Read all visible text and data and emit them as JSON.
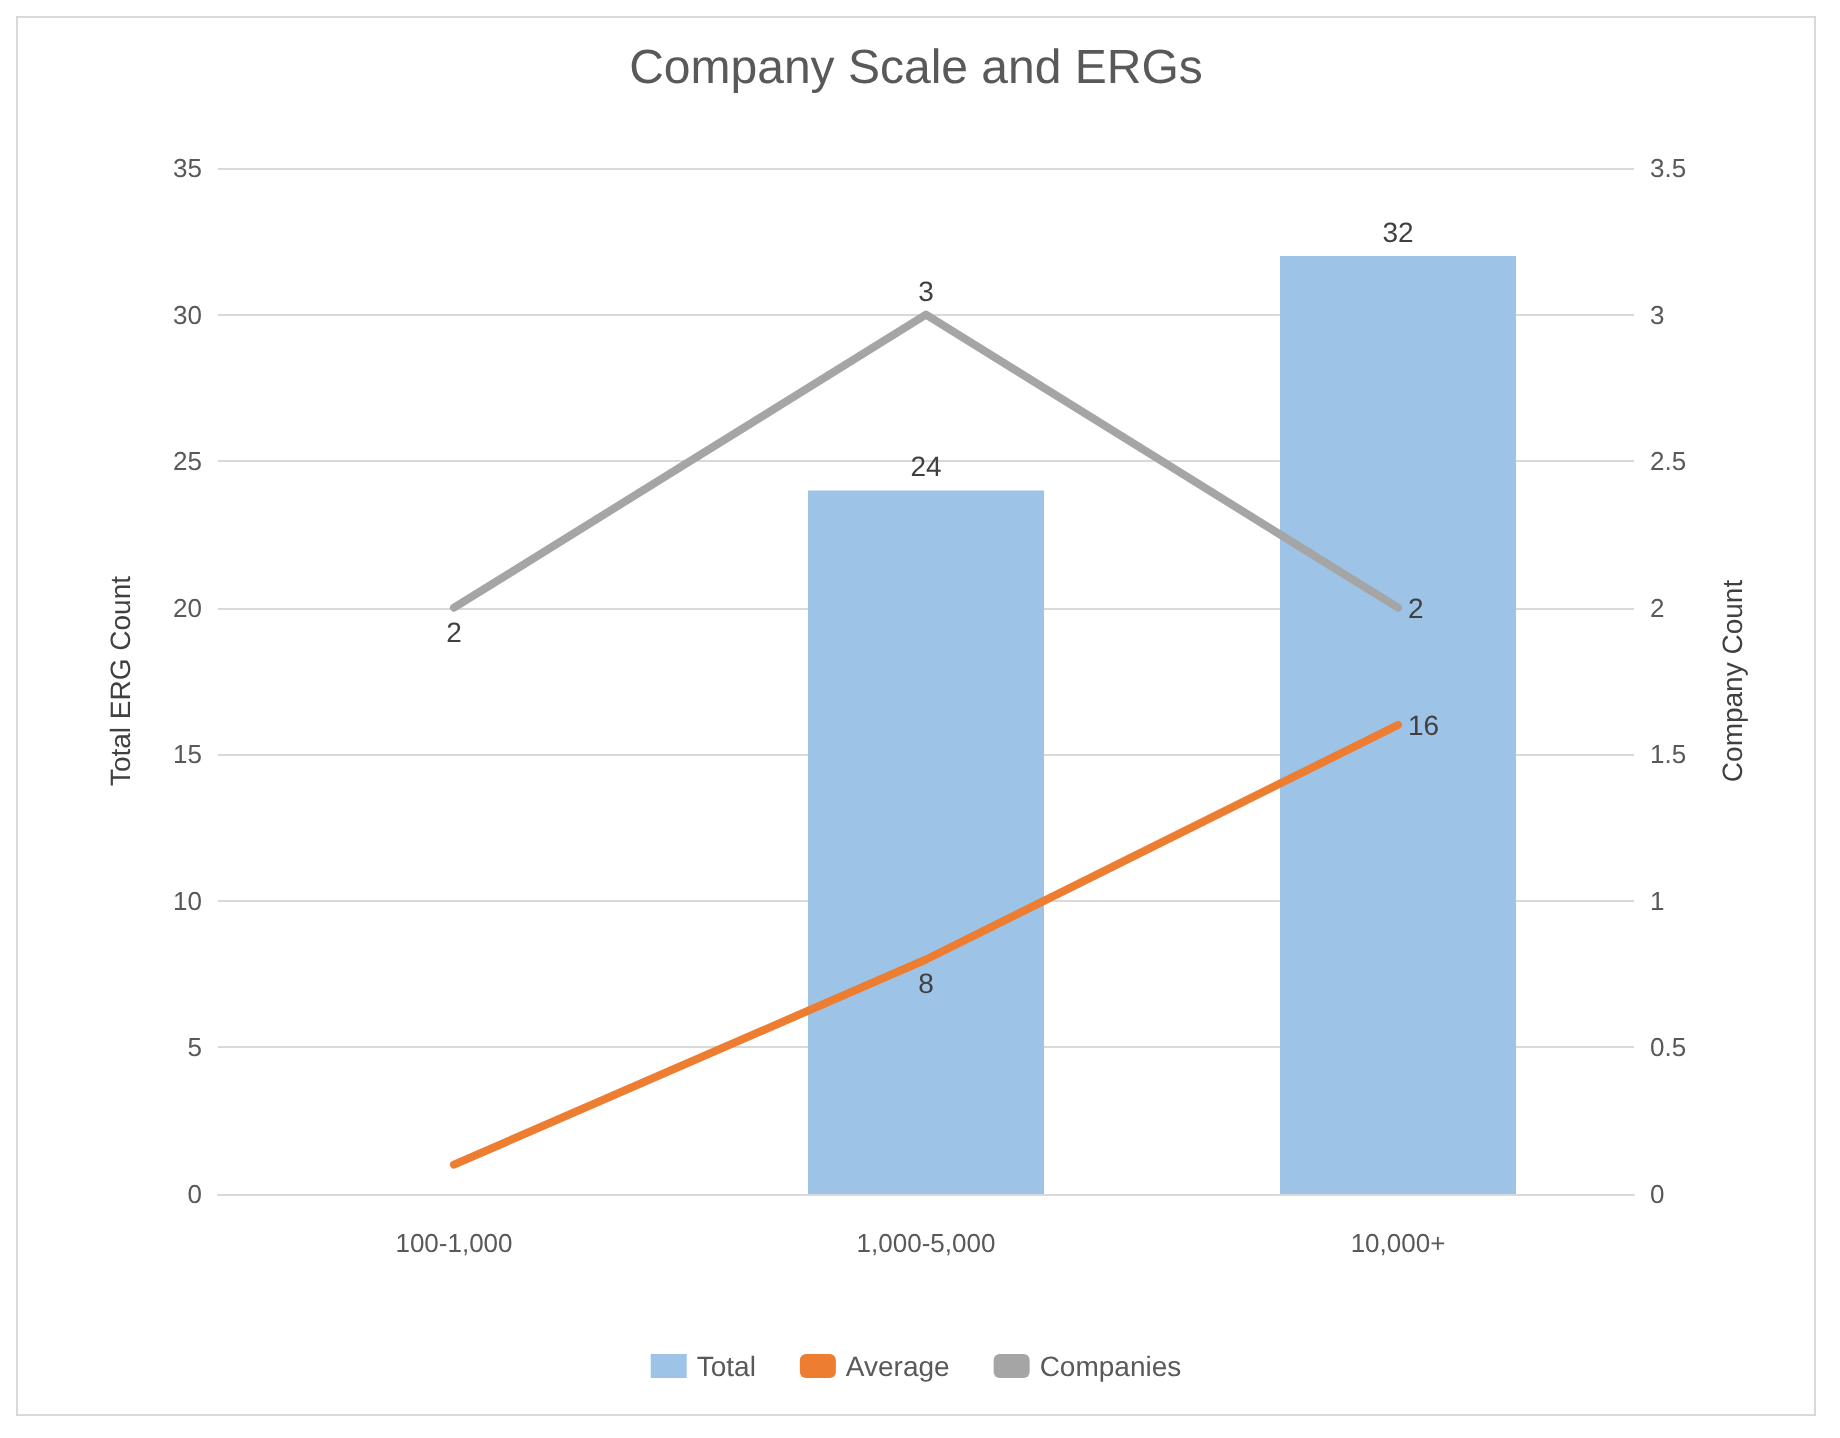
{
  "chart_data": {
    "type": "bar",
    "title": "Company Scale and ERGs",
    "ylabel": "Total ERG Count",
    "y2label": "Company Count",
    "categories": [
      "100-1,000",
      "1,000-5,000",
      "10,000+"
    ],
    "series": [
      {
        "name": "Total",
        "color": "#9dc3e6",
        "values": [
          null,
          24,
          32
        ],
        "value_labels": [
          null,
          "24",
          "32"
        ]
      },
      {
        "name": "Average",
        "type": "line",
        "color": "#ed7d31",
        "values": [
          1,
          8,
          16
        ],
        "value_labels": [
          null,
          "8",
          "16"
        ]
      },
      {
        "name": "Companies",
        "type": "line",
        "axis": "y2",
        "color": "#a5a5a5",
        "values": [
          2,
          3,
          2
        ],
        "value_labels": [
          "2",
          "3",
          "2"
        ]
      }
    ],
    "ylim": [
      0,
      35
    ],
    "yticks": [
      0,
      5,
      10,
      15,
      20,
      25,
      30,
      35
    ],
    "y2lim": [
      0,
      3.5
    ],
    "y2ticks": [
      0,
      0.5,
      1,
      1.5,
      2,
      2.5,
      3,
      3.5
    ],
    "grid": "y",
    "legend": "bottom",
    "marker": "none"
  }
}
